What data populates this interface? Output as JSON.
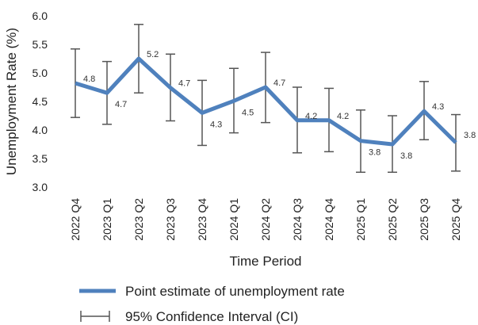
{
  "chart_data": {
    "type": "line",
    "categories": [
      "2022 Q4",
      "2023 Q1",
      "2023 Q2",
      "2023 Q3",
      "2023 Q4",
      "2024 Q1",
      "2024 Q2",
      "2024 Q3",
      "2024 Q4",
      "2025 Q1",
      "2025 Q2",
      "2025 Q3",
      "2025 Q4"
    ],
    "series": [
      {
        "name": "Point estimate of unemployment rate",
        "values": [
          4.82,
          4.65,
          5.25,
          4.74,
          4.3,
          4.51,
          4.75,
          4.17,
          4.17,
          3.81,
          3.75,
          4.33,
          3.78
        ],
        "data_labels": [
          "4.8",
          "4.7",
          "5.2",
          "4.7",
          "4.3",
          "4.5",
          "4.7",
          "4.2",
          "4.2",
          "3.8",
          "3.8",
          "4.3",
          "3.8"
        ],
        "ci_low": [
          4.22,
          4.1,
          4.65,
          4.16,
          3.73,
          3.95,
          4.13,
          3.6,
          3.62,
          3.26,
          3.26,
          3.83,
          3.28
        ],
        "ci_high": [
          5.42,
          5.2,
          5.85,
          5.33,
          4.87,
          5.08,
          5.36,
          4.75,
          4.73,
          4.35,
          4.25,
          4.85,
          4.27
        ],
        "color": "#4f81bd"
      }
    ],
    "ylabel": "Unemployment Rate (%)",
    "xlabel": "Time Period",
    "ylim": [
      3.0,
      6.0
    ],
    "yticks": [
      "3.0",
      "3.5",
      "4.0",
      "4.5",
      "5.0",
      "5.5",
      "6.0"
    ],
    "grid": false,
    "legend_position": "bottom",
    "legend": [
      {
        "label": "Point estimate of unemployment rate",
        "kind": "line"
      },
      {
        "label": "95% Confidence Interval (CI)",
        "kind": "errorbar"
      }
    ],
    "ci_color": "#555555"
  }
}
